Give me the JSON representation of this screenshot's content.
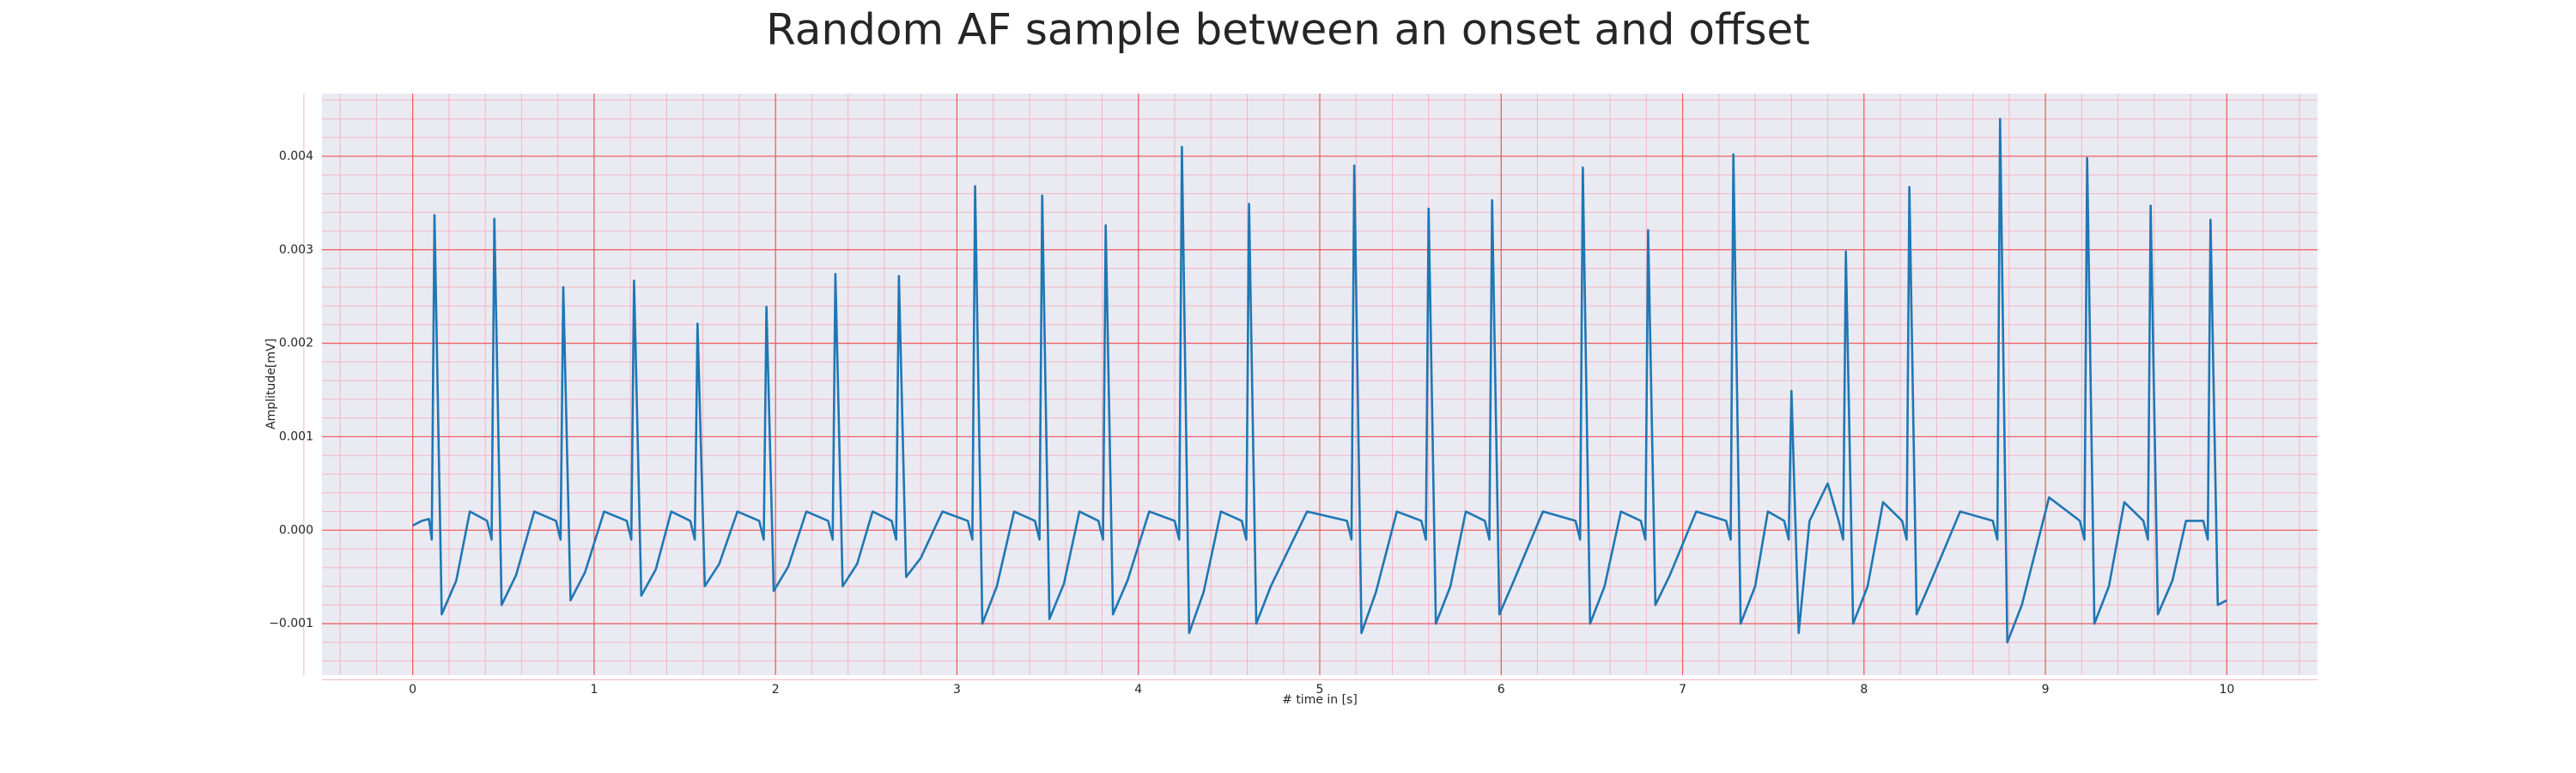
{
  "chart_data": {
    "type": "line",
    "title": "Random AF sample between an onset and offset",
    "xlabel": "# time in [s]",
    "ylabel": "Amplitude[mV]",
    "color": "#1f77b4",
    "grid": true,
    "xlim": [
      -0.5,
      10.5
    ],
    "ylim": [
      -0.00155,
      0.00467
    ],
    "xticks": [
      0,
      1,
      2,
      3,
      4,
      5,
      6,
      7,
      8,
      9,
      10
    ],
    "yticks": [
      {
        "value": -0.001,
        "label": "−0.001"
      },
      {
        "value": 0,
        "label": "0.000"
      },
      0.001,
      0.002,
      0.003,
      0.004
    ],
    "x": [
      0,
      0.05,
      0.09,
      0.105,
      0.12,
      0.16,
      0.24,
      0.315,
      0.41,
      0.435,
      0.45,
      0.49,
      0.57,
      0.67,
      0.79,
      0.815,
      0.83,
      0.87,
      0.95,
      1.055,
      1.18,
      1.205,
      1.22,
      1.26,
      1.34,
      1.425,
      1.53,
      1.555,
      1.57,
      1.61,
      1.69,
      1.79,
      1.91,
      1.935,
      1.95,
      1.99,
      2.07,
      2.17,
      2.29,
      2.315,
      2.33,
      2.37,
      2.45,
      2.535,
      2.64,
      2.665,
      2.68,
      2.72,
      2.8,
      2.92,
      3.06,
      3.085,
      3.1,
      3.14,
      3.22,
      3.315,
      3.43,
      3.455,
      3.47,
      3.51,
      3.59,
      3.675,
      3.78,
      3.805,
      3.82,
      3.86,
      3.94,
      4.06,
      4.2,
      4.225,
      4.24,
      4.28,
      4.36,
      4.455,
      4.57,
      4.595,
      4.61,
      4.65,
      4.73,
      4.93,
      5.15,
      5.175,
      5.19,
      5.23,
      5.31,
      5.425,
      5.56,
      5.585,
      5.6,
      5.64,
      5.72,
      5.805,
      5.91,
      5.935,
      5.95,
      5.99,
      6.07,
      6.23,
      6.41,
      6.435,
      6.45,
      6.49,
      6.57,
      6.66,
      6.77,
      6.795,
      6.81,
      6.85,
      6.93,
      7.075,
      7.24,
      7.265,
      7.28,
      7.32,
      7.4,
      7.47,
      7.56,
      7.585,
      7.6,
      7.64,
      7.7,
      7.8,
      7.86,
      7.885,
      7.9,
      7.94,
      8.02,
      8.105,
      8.21,
      8.235,
      8.25,
      8.29,
      8.37,
      8.53,
      8.71,
      8.735,
      8.75,
      8.79,
      8.87,
      9.02,
      9.19,
      9.215,
      9.23,
      9.27,
      9.35,
      9.435,
      9.54,
      9.565,
      9.58,
      9.62,
      9.7,
      9.775,
      9.87,
      9.895,
      9.91,
      9.95,
      10.0
    ],
    "values": [
      5e-05,
      0.0001,
      0.00012,
      -0.0001,
      0.00337,
      -0.0009,
      -0.00054,
      0.0002,
      0.0001,
      -0.0001,
      0.00333,
      -0.0008,
      -0.00048,
      0.0002,
      0.0001,
      -0.0001,
      0.0026,
      -0.00075,
      -0.00045,
      0.0002,
      0.0001,
      -0.0001,
      0.00267,
      -0.0007,
      -0.00042,
      0.0002,
      0.0001,
      -0.0001,
      0.00221,
      -0.0006,
      -0.00036,
      0.0002,
      0.0001,
      -0.0001,
      0.00239,
      -0.00065,
      -0.00039,
      0.0002,
      0.0001,
      -0.0001,
      0.00274,
      -0.0006,
      -0.00036,
      0.0002,
      0.0001,
      -0.0001,
      0.00272,
      -0.0005,
      -0.0003,
      0.0002,
      0.0001,
      -0.0001,
      0.00368,
      -0.001,
      -0.0006,
      0.0002,
      0.0001,
      -0.0001,
      0.00358,
      -0.00095,
      -0.00057,
      0.0002,
      0.0001,
      -0.0001,
      0.00326,
      -0.0009,
      -0.00054,
      0.0002,
      0.0001,
      -0.0001,
      0.0041,
      -0.0011,
      -0.00066,
      0.0002,
      0.0001,
      -0.0001,
      0.00349,
      -0.001,
      -0.0006,
      0.0002,
      0.0001,
      -0.0001,
      0.0039,
      -0.0011,
      -0.00066,
      0.0002,
      0.0001,
      -0.0001,
      0.00344,
      -0.001,
      -0.0006,
      0.0002,
      0.0001,
      -0.0001,
      0.00353,
      -0.0009,
      -0.00054,
      0.0002,
      0.0001,
      -0.0001,
      0.00388,
      -0.001,
      -0.0006,
      0.0002,
      0.0001,
      -0.0001,
      0.00321,
      -0.0008,
      -0.00048,
      0.0002,
      0.0001,
      -0.0001,
      0.00402,
      -0.001,
      -0.0006,
      0.0002,
      0.0001,
      -0.0001,
      0.00149,
      -0.0011,
      0.0001,
      0.0005,
      0.0001,
      -0.0001,
      0.00298,
      -0.001,
      -0.0006,
      0.0003,
      0.0001,
      -0.0001,
      0.00367,
      -0.0009,
      -0.00054,
      0.0002,
      0.0001,
      -0.0001,
      0.0044,
      -0.0012,
      -0.0008,
      0.00035,
      0.0001,
      -0.0001,
      0.00398,
      -0.001,
      -0.0006,
      0.0003,
      0.0001,
      -0.0001,
      0.00347,
      -0.0009,
      -0.00054,
      0.0001,
      0.0001,
      -0.0001,
      0.00332,
      -0.0008,
      -0.00075
    ]
  }
}
